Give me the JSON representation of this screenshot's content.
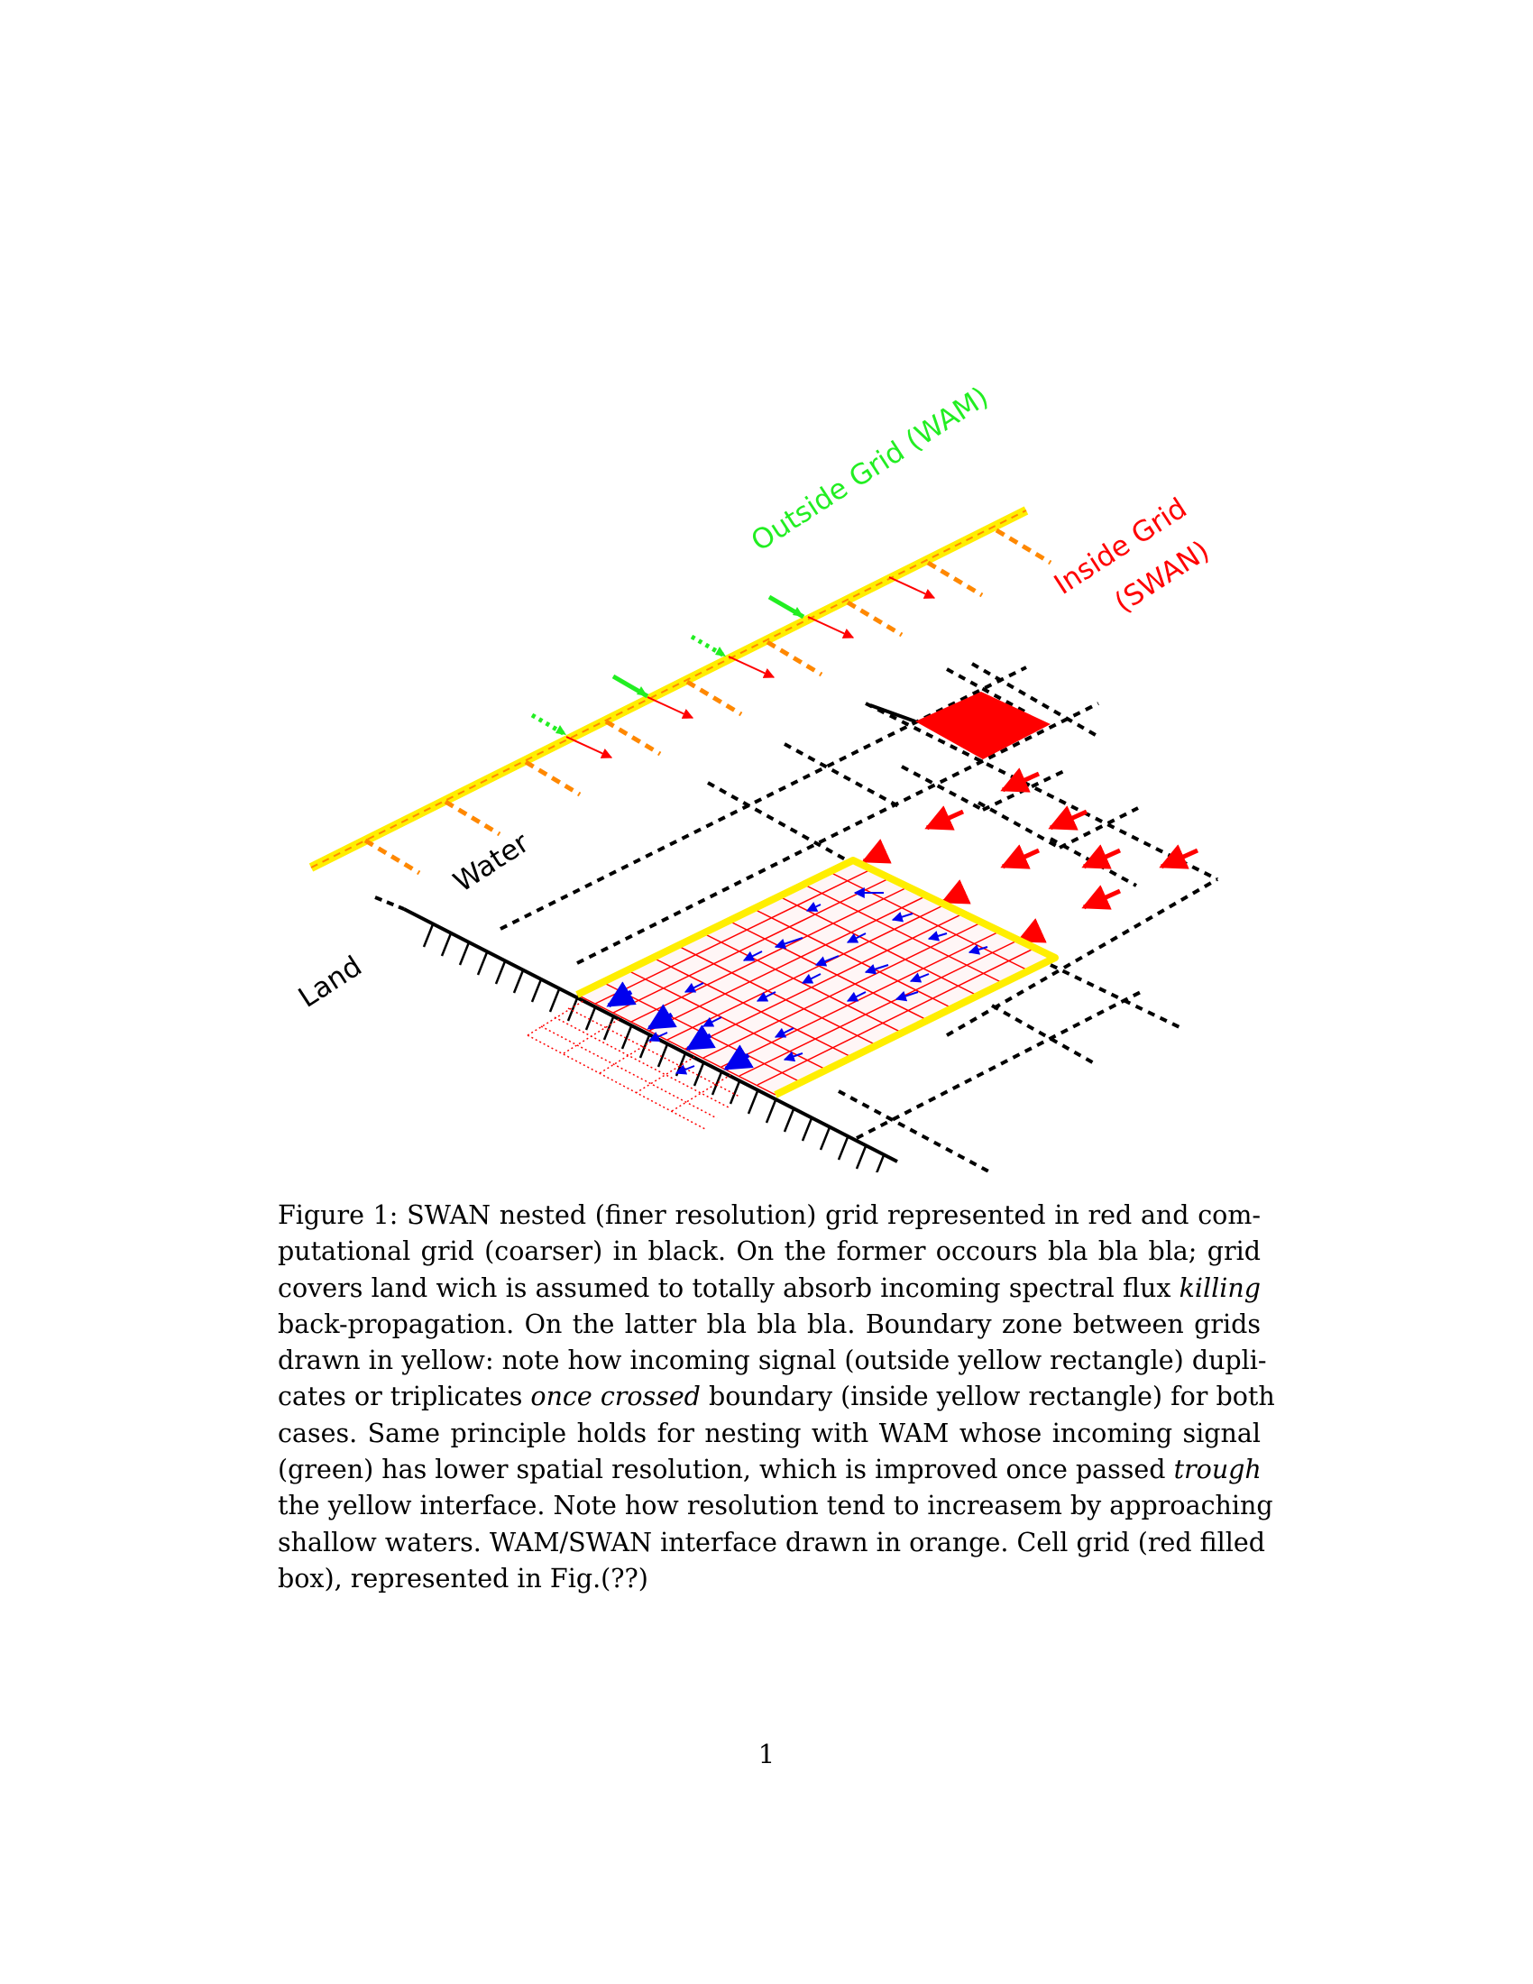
{
  "figure": {
    "labels": {
      "outside_grid": "Outside Grid (WAM)",
      "inside_grid_line1": "Inside Grid",
      "inside_grid_line2": "(SWAN)",
      "water": "Water",
      "land": "Land"
    },
    "colors": {
      "wam": "#22ee22",
      "swan": "#ff0000",
      "boundary": "#ffee00",
      "interface": "#ff8800",
      "coarse_grid": "#000000",
      "nested_grid": "#ff0000",
      "nested_arrows": "#0000ee",
      "cell": "#ff0000"
    }
  },
  "caption": {
    "line1": "Figure 1: SWAN nested (finer resolution) grid represented in red and com-",
    "line2": "putational grid (coarser) in black. On the former occours bla bla bla; grid",
    "line3a": "covers land wich is assumed to totally absorb incoming spectral flux ",
    "line3_em": "killing",
    "line4": "back-propagation. On the latter bla bla bla. Boundary zone between grids",
    "line5": "drawn in yellow: note how incoming signal (outside yellow rectangle) dupli-",
    "line6a": "cates or triplicates ",
    "line6_em": "once crossed",
    "line6b": " boundary (inside yellow rectangle) for both",
    "line7": "cases. Same principle holds for nesting with WAM whose incoming signal",
    "line8a": "(green) has lower spatial resolution, which is improved once passed ",
    "line8_em": "trough",
    "line9": "the yellow interface. Note how resolution tend to increasem by approaching",
    "line10": "shallow waters. WAM/SWAN interface drawn in orange. Cell grid (red filled",
    "line11": "box), represented in Fig.(??)"
  },
  "page_number": "1"
}
